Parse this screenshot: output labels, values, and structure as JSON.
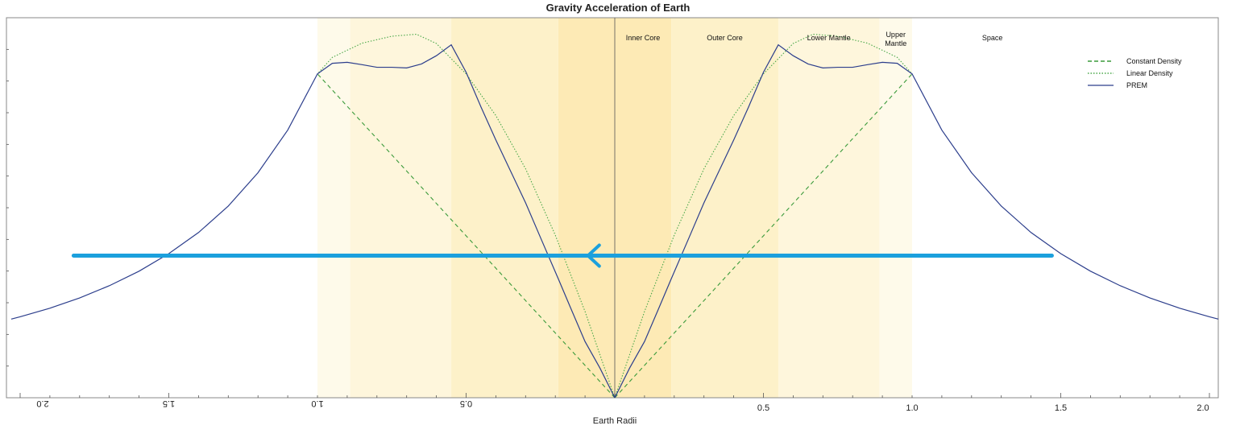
{
  "chart_data": {
    "type": "line",
    "title": "Gravity Acceleration of Earth",
    "xlabel": "Earth Radii",
    "ylabel": "",
    "xlim": [
      -2.03,
      2.03
    ],
    "ylim": [
      0,
      11.5
    ],
    "grid": false,
    "legend_position": "top-right",
    "ticks_right": [
      "0.5",
      "1.0",
      "1.5",
      "2.0"
    ],
    "ticks_left_mirrored": [
      "2.0",
      "1.5",
      "1.0",
      "0.5"
    ],
    "regions": [
      {
        "name": "Inner Core",
        "from": 0.0,
        "to": 0.19,
        "color": "#fdeab5"
      },
      {
        "name": "Outer Core",
        "from": 0.19,
        "to": 0.55,
        "color": "#fdf1c9"
      },
      {
        "name": "Lower Mantle",
        "from": 0.55,
        "to": 0.89,
        "color": "#fef6dc"
      },
      {
        "name": "Upper",
        "name2": "Mantle",
        "from": 0.89,
        "to": 1.0,
        "color": "#fefaea"
      },
      {
        "name": "Space",
        "from": 1.0,
        "to": 2.03,
        "color": "#ffffff"
      }
    ],
    "series": [
      {
        "name": "Constant Density",
        "style": "dashed",
        "color": "#3a9a3a",
        "x": [
          0,
          1.0
        ],
        "y": [
          0,
          9.8
        ]
      },
      {
        "name": "Linear Density",
        "style": "dotted",
        "color": "#4aa84a",
        "x": [
          0,
          0.1,
          0.2,
          0.3,
          0.4,
          0.5,
          0.6,
          0.667,
          0.75,
          0.85,
          0.95,
          1.0
        ],
        "y": [
          0,
          2.61,
          4.92,
          6.93,
          8.54,
          9.8,
          10.72,
          11.0,
          10.94,
          10.73,
          10.3,
          9.8
        ]
      },
      {
        "name": "PREM",
        "style": "solid",
        "color": "#2c3e8c",
        "x": [
          0,
          0.05,
          0.1,
          0.15,
          0.19,
          0.25,
          0.3,
          0.35,
          0.4,
          0.45,
          0.5,
          0.55,
          0.6,
          0.65,
          0.7,
          0.75,
          0.8,
          0.85,
          0.9,
          0.95,
          1.0,
          1.1,
          1.2,
          1.3,
          1.4,
          1.5,
          1.6,
          1.7,
          1.8,
          1.9,
          2.0,
          2.03
        ],
        "y": [
          0,
          0.9,
          1.7,
          2.75,
          3.6,
          4.85,
          5.9,
          6.85,
          7.8,
          8.8,
          9.85,
          10.68,
          10.35,
          10.1,
          9.98,
          10.0,
          10.0,
          10.08,
          10.15,
          10.12,
          9.8,
          8.1,
          6.81,
          5.8,
          5.0,
          4.36,
          3.83,
          3.39,
          3.02,
          2.71,
          2.45,
          2.38
        ]
      }
    ],
    "annotation": {
      "type": "horizontal-arrow",
      "color": "#1ba0dd",
      "y": 4.3,
      "x_start": 1.47,
      "x_end": -1.82,
      "arrowhead_at": -0.09
    }
  }
}
